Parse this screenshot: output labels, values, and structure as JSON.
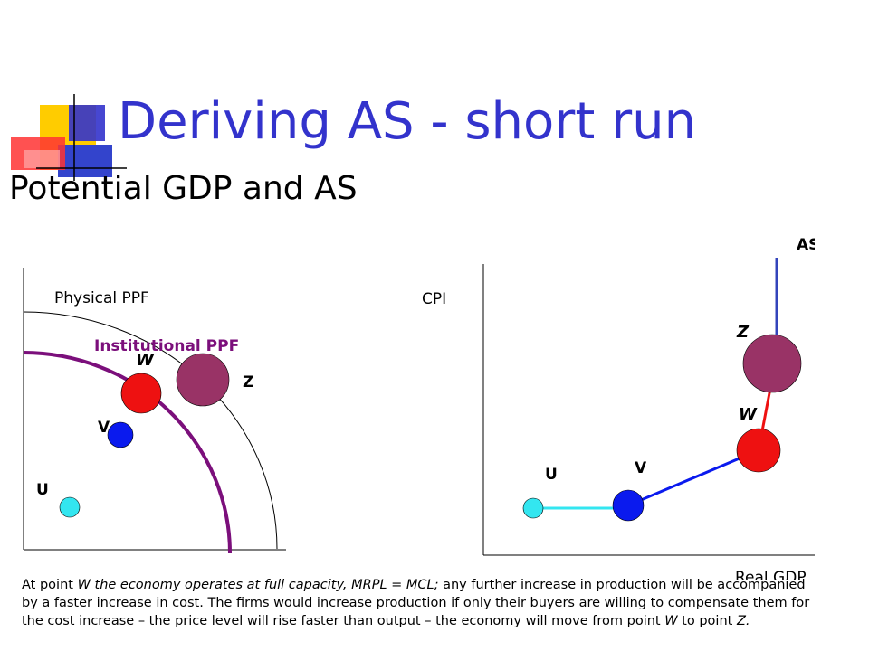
{
  "slide": {
    "title": "Deriving AS  - short run",
    "subtitle": "Potential GDP and AS"
  },
  "left_diagram": {
    "physical_ppf_label": "Physical PPF",
    "institutional_ppf_label": "Institutional PPF",
    "points": {
      "u": "U",
      "v": "V",
      "w": "W",
      "z": "Z"
    }
  },
  "right_diagram": {
    "y_axis_label": "CPI",
    "x_axis_label": "Real GDP",
    "curve_label": "AS",
    "points": {
      "u": "U",
      "v": "V",
      "w": "W",
      "z": "Z"
    }
  },
  "caption": {
    "part1": "At point ",
    "part2": "W the economy operates at full capacity, MRPL = MCL;",
    "part3": "  any further increase in production will be accompanied by a faster increase in cost. The firms would increase production if only their buyers are willing to compensate them for the cost increase – the price level will rise faster than output – the economy will move from point ",
    "part4": "W",
    "part5": " to point ",
    "part6": "Z."
  },
  "colors": {
    "title_blue": "#3333cc",
    "institutional_purple": "#7b0f7b",
    "point_u": "#33e6f0",
    "point_v": "#0a1aee",
    "point_w": "#ee1111",
    "point_z": "#993366",
    "as_blue": "#3344bb"
  }
}
